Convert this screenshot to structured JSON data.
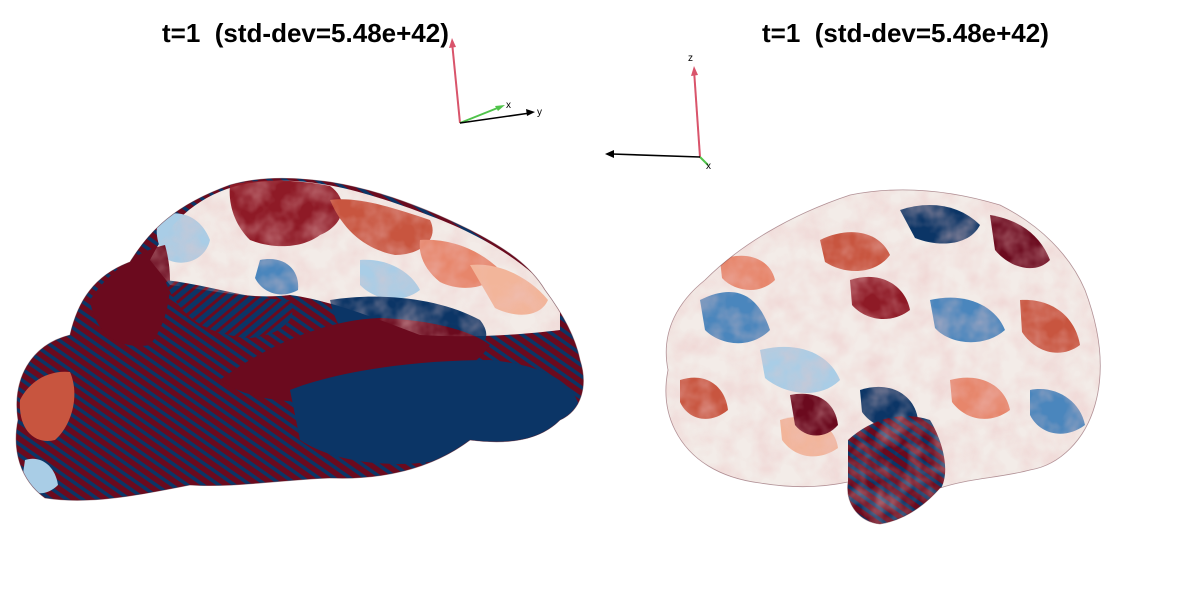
{
  "panels": [
    {
      "title": "t=1  (std-dev=5.48e+42)",
      "view": "medial",
      "axes": {
        "labels": [
          "x",
          "y"
        ]
      }
    },
    {
      "title": "t=1  (std-dev=5.48e+42)",
      "view": "lateral",
      "axes": {
        "labels": [
          "z",
          "x"
        ]
      }
    }
  ],
  "colors": {
    "positive_strong": "#6b0a1e",
    "positive_mid": "#c8553f",
    "positive_light": "#f2b59a",
    "neutral": "#f3ece8",
    "negative_light": "#a9cde6",
    "negative_mid": "#4a86bd",
    "negative_strong": "#0b3566",
    "axis_z": "#d9546b",
    "axis_x": "#4fc34a",
    "axis_y": "#000000"
  }
}
